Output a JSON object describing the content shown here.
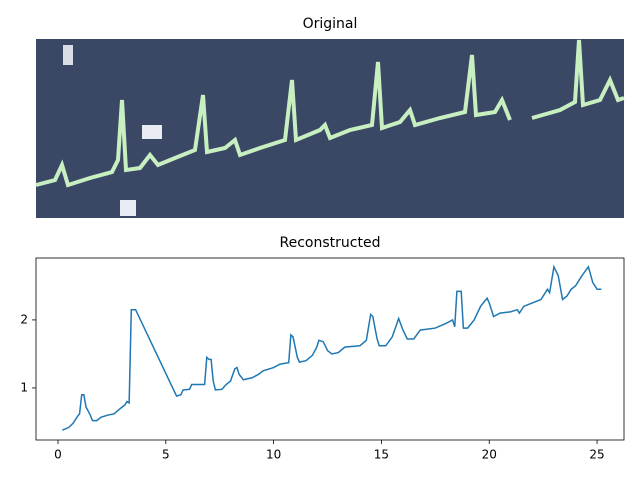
{
  "chart_data": [
    {
      "type": "image",
      "title": "Original"
    },
    {
      "type": "line",
      "title": "Reconstructed",
      "color": "#1f77b4",
      "x": [
        0.2,
        0.5,
        0.7,
        0.9,
        1.0,
        1.1,
        1.2,
        1.3,
        1.5,
        1.6,
        1.8,
        2.0,
        2.3,
        2.6,
        2.9,
        3.1,
        3.2,
        3.3,
        3.4,
        3.6,
        5.5,
        5.7,
        5.8,
        6.1,
        6.2,
        6.8,
        6.9,
        7.0,
        7.1,
        7.2,
        7.3,
        7.6,
        7.8,
        8.0,
        8.2,
        8.3,
        8.4,
        8.6,
        9.0,
        9.3,
        9.5,
        10.0,
        10.3,
        10.7,
        10.8,
        10.9,
        11.0,
        11.1,
        11.2,
        11.5,
        11.8,
        12.0,
        12.1,
        12.3,
        12.5,
        12.7,
        13.0,
        13.3,
        14.0,
        14.3,
        14.5,
        14.6,
        14.8,
        14.9,
        15.2,
        15.5,
        15.8,
        16.0,
        16.2,
        16.5,
        16.8,
        17.5,
        18.0,
        18.3,
        18.4,
        18.5,
        18.7,
        18.8,
        19.0,
        19.3,
        19.6,
        19.9,
        20.0,
        20.2,
        20.5,
        21.0,
        21.3,
        21.4,
        21.6,
        22.0,
        22.4,
        22.7,
        22.8,
        23.0,
        23.2,
        23.4,
        23.6,
        23.8,
        24.0,
        24.3,
        24.6,
        24.8,
        25.0,
        25.2
      ],
      "values": [
        0.38,
        0.42,
        0.48,
        0.58,
        0.62,
        0.9,
        0.9,
        0.72,
        0.6,
        0.52,
        0.52,
        0.57,
        0.6,
        0.62,
        0.7,
        0.75,
        0.8,
        0.78,
        2.15,
        2.15,
        0.88,
        0.9,
        0.97,
        0.98,
        1.05,
        1.05,
        1.45,
        1.42,
        1.42,
        1.1,
        0.97,
        0.98,
        1.05,
        1.1,
        1.28,
        1.3,
        1.2,
        1.12,
        1.15,
        1.2,
        1.25,
        1.3,
        1.35,
        1.37,
        1.78,
        1.75,
        1.6,
        1.45,
        1.38,
        1.4,
        1.48,
        1.6,
        1.7,
        1.68,
        1.55,
        1.5,
        1.52,
        1.6,
        1.62,
        1.7,
        2.08,
        2.05,
        1.72,
        1.62,
        1.62,
        1.75,
        2.02,
        1.85,
        1.72,
        1.72,
        1.85,
        1.88,
        1.95,
        2.0,
        1.9,
        2.42,
        2.42,
        1.88,
        1.88,
        2.0,
        2.2,
        2.32,
        2.25,
        2.05,
        2.1,
        2.12,
        2.15,
        2.1,
        2.2,
        2.25,
        2.3,
        2.45,
        2.4,
        2.78,
        2.65,
        2.3,
        2.35,
        2.45,
        2.5,
        2.65,
        2.78,
        2.55,
        2.45,
        2.45
      ],
      "xlim": [
        -1.02,
        26.25
      ],
      "ylim": [
        0.235,
        2.91
      ],
      "xticks": [
        0,
        5,
        10,
        15,
        20,
        25
      ],
      "yticks": [
        1,
        2
      ]
    }
  ]
}
